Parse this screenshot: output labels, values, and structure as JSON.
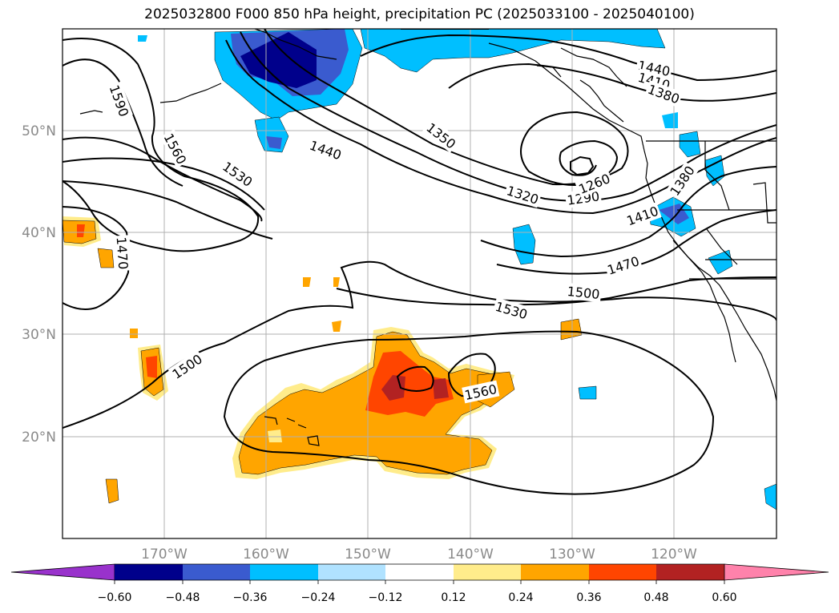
{
  "title": "2025032800 F000 850 hPa height, precipitation PC (2025033100 - 2025040100)",
  "latitude_labels": [
    "50°N",
    "40°N",
    "30°N",
    "20°N"
  ],
  "longitude_labels": [
    "170°W",
    "160°W",
    "150°W",
    "140°W",
    "130°W",
    "120°W"
  ],
  "contour_labels": [
    "1590",
    "1560",
    "1530",
    "1440",
    "1350",
    "1320",
    "1290",
    "1260",
    "1380",
    "1410",
    "1440",
    "1410",
    "1380",
    "1470",
    "1500",
    "1530",
    "1500",
    "1560",
    "1470"
  ],
  "colorbar": {
    "ticks": [
      "−0.60",
      "−0.48",
      "−0.36",
      "−0.24",
      "−0.12",
      "0.12",
      "0.24",
      "0.36",
      "0.48",
      "0.60"
    ],
    "colors": [
      "#9932cc",
      "#00008b",
      "#3a5bcf",
      "#00bfff",
      "#b0e2ff",
      "#ffffff",
      "#ffec8b",
      "#ffa500",
      "#ff4500",
      "#b22222",
      "#ff82ab"
    ]
  }
}
